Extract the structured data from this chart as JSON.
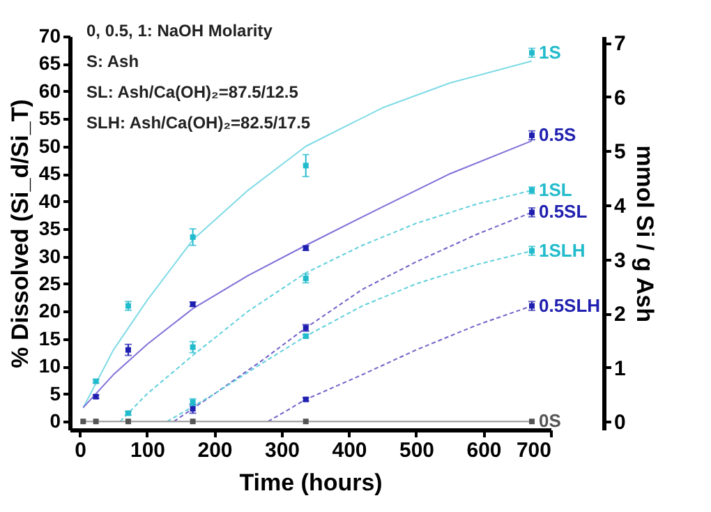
{
  "chart_data": {
    "type": "scatter",
    "xlabel": "Time (hours)",
    "ylabel": "% Dissolved (Si_d/Si_T)",
    "y2label": "mmol Si / g Ash",
    "annotations": [
      "0, 0.5, 1: NaOH Molarity",
      "S: Ash",
      "SL: Ash/Ca(OH)₂=87.5/12.5",
      "SLH: Ash/Ca(OH)₂=82.5/17.5"
    ],
    "xlim": [
      -15,
      700
    ],
    "xticks": [
      0,
      100,
      200,
      300,
      400,
      500,
      600,
      700
    ],
    "ylim": [
      -1.5,
      70
    ],
    "yticks": [
      0,
      5,
      10,
      15,
      20,
      25,
      30,
      35,
      40,
      45,
      50,
      55,
      60,
      65,
      70
    ],
    "y2lim": [
      -0.15,
      7.12
    ],
    "y2ticks": [
      0,
      1,
      2,
      3,
      4,
      5,
      6,
      7
    ],
    "grid": false,
    "series": [
      {
        "type": "line",
        "color": "#7fdbe6",
        "line_style": "solid",
        "x": [
          5,
          50,
          100,
          168,
          250,
          336,
          450,
          550,
          672
        ],
        "values": [
          2.5,
          13,
          22,
          33,
          42,
          50,
          57,
          61.5,
          65.5
        ]
      },
      {
        "type": "line",
        "color": "#8070d8",
        "line_style": "solid",
        "x": [
          5,
          50,
          100,
          168,
          250,
          336,
          450,
          550,
          672
        ],
        "values": [
          2.5,
          8.5,
          14,
          20.5,
          26.5,
          32,
          39,
          45,
          51
        ]
      },
      {
        "type": "line",
        "color": "#5fd0dc",
        "line_style": "dashed",
        "x": [
          60,
          100,
          168,
          250,
          336,
          420,
          500,
          590,
          672
        ],
        "values": [
          0,
          5,
          12,
          20,
          27,
          32,
          36,
          39.5,
          42
        ]
      },
      {
        "type": "line",
        "color": "#7060c8",
        "line_style": "dashed",
        "x": [
          140,
          200,
          270,
          336,
          420,
          500,
          590,
          672
        ],
        "values": [
          0,
          5,
          11,
          17,
          24,
          29,
          34,
          38
        ]
      },
      {
        "type": "line",
        "color": "#5fd0dc",
        "line_style": "dashed",
        "x": [
          130,
          200,
          270,
          336,
          420,
          500,
          590,
          672
        ],
        "values": [
          0,
          5,
          10.5,
          15.5,
          21,
          25,
          28.5,
          31
        ]
      },
      {
        "type": "line",
        "color": "#7060c8",
        "line_style": "dashed",
        "x": [
          280,
          336,
          420,
          500,
          590,
          672
        ],
        "values": [
          0,
          4,
          8.5,
          13,
          17.5,
          21
        ]
      },
      {
        "type": "line",
        "color": "#999999",
        "line_style": "solid",
        "x": [
          5,
          672
        ],
        "values": [
          0,
          0
        ]
      },
      {
        "name": "1S",
        "marker": "square",
        "color": "#22bbcc",
        "x": [
          24,
          72,
          168,
          336,
          672
        ],
        "values": [
          7.3,
          21,
          33.5,
          46.5,
          67
        ],
        "errors": [
          0.3,
          0.8,
          1.5,
          2,
          0.8
        ]
      },
      {
        "name": "0.5S",
        "marker": "square",
        "color": "#2020b0",
        "x": [
          24,
          72,
          168,
          336,
          672
        ],
        "values": [
          4.5,
          13,
          21.3,
          31.5,
          52
        ],
        "errors": [
          0.3,
          1,
          0.4,
          0.4,
          0.8
        ]
      },
      {
        "name": "1SL",
        "marker": "square",
        "color": "#22bbcc",
        "x": [
          72,
          168,
          336,
          672
        ],
        "values": [
          1.5,
          13.5,
          26,
          42
        ],
        "errors": [
          0.3,
          1,
          0.8,
          0.6
        ]
      },
      {
        "name": "0.5SL",
        "marker": "square",
        "color": "#2020b0",
        "x": [
          168,
          336,
          672
        ],
        "values": [
          2.3,
          17,
          38
        ],
        "errors": [
          0.8,
          0.6,
          0.8
        ]
      },
      {
        "name": "1SLH",
        "marker": "square",
        "color": "#22bbcc",
        "x": [
          168,
          336,
          672
        ],
        "values": [
          3.5,
          15.5,
          31
        ],
        "errors": [
          0.6,
          0.3,
          0.8
        ]
      },
      {
        "name": "0.5SLH",
        "marker": "square",
        "color": "#2020b0",
        "x": [
          336,
          672
        ],
        "values": [
          4,
          21
        ],
        "errors": [
          0.3,
          0.8
        ]
      },
      {
        "name": "0S",
        "marker": "square",
        "color": "#555555",
        "x": [
          5,
          24,
          72,
          168,
          336,
          672
        ],
        "values": [
          0,
          0,
          0,
          0,
          0,
          0
        ]
      }
    ]
  }
}
